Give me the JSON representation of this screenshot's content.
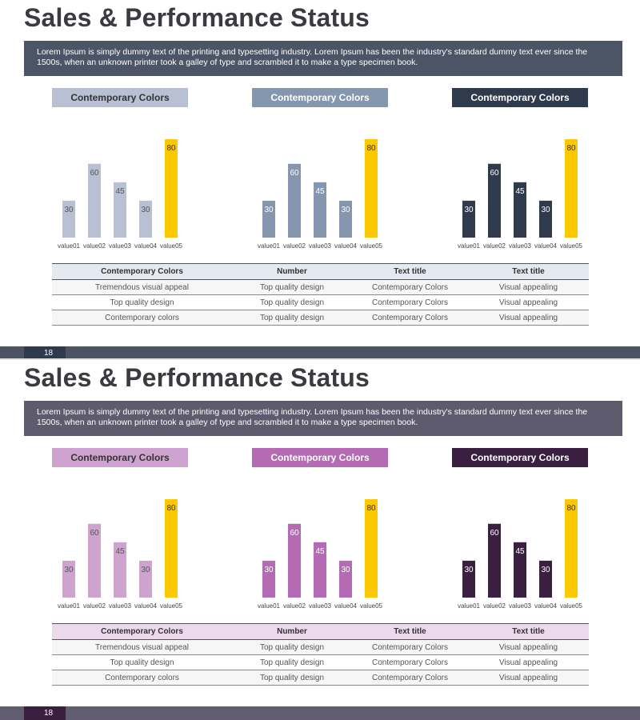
{
  "slides": [
    {
      "title": "Sales & Performance Status",
      "description": "Lorem Ipsum is simply dummy text of the printing and typesetting industry. Lorem Ipsum has been the industry's standard dummy text ever since the 1500s, when an unknown printer took a galley of type and scrambled it to make a type specimen book.",
      "theme": {
        "band": "#4b5566",
        "light": "#b8c0d3",
        "mid": "#8597ae",
        "dark": "#2f3a4d",
        "highlight": "#fdc800",
        "table_header_bg": "#e5e9f1",
        "footer": "#4c5364",
        "footer_num": "#2f3a4d"
      },
      "panel_headers": [
        "Contemporary Colors",
        "Contemporary Colors",
        "Contemporary Colors"
      ],
      "table": {
        "headers": [
          "Contemporary Colors",
          "Number",
          "Text title",
          "Text title"
        ],
        "rows": [
          [
            "Tremendous visual appeal",
            "Top quality design",
            "Contemporary Colors",
            "Visual appealing"
          ],
          [
            "Top quality design",
            "Top quality design",
            "Contemporary Colors",
            "Visual appealing"
          ],
          [
            "Contemporary colors",
            "Top quality design",
            "Contemporary Colors",
            "Visual appealing"
          ]
        ]
      },
      "page_number": "18"
    },
    {
      "title": "Sales & Performance Status",
      "description": "Lorem Ipsum is simply dummy text of the printing and typesetting industry. Lorem Ipsum has been the industry's standard dummy text ever since the 1500s, when an unknown printer took a galley of type and scrambled it to make a type specimen book.",
      "theme": {
        "band": "#5e5b6e",
        "light": "#cfa3cf",
        "mid": "#b46bb4",
        "dark": "#3a1f41",
        "highlight": "#fdc800",
        "table_header_bg": "#ecdaec",
        "footer": "#625c70",
        "footer_num": "#3a1f41"
      },
      "panel_headers": [
        "Contemporary Colors",
        "Contemporary Colors",
        "Contemporary Colors"
      ],
      "table": {
        "headers": [
          "Contemporary Colors",
          "Number",
          "Text title",
          "Text title"
        ],
        "rows": [
          [
            "Tremendous visual appeal",
            "Top quality design",
            "Contemporary Colors",
            "Visual appealing"
          ],
          [
            "Top quality design",
            "Top quality design",
            "Contemporary Colors",
            "Visual appealing"
          ],
          [
            "Contemporary colors",
            "Top quality design",
            "Contemporary Colors",
            "Visual appealing"
          ]
        ]
      },
      "page_number": "18"
    }
  ],
  "chart_data": [
    {
      "type": "bar",
      "title": "Contemporary Colors",
      "categories": [
        "value01",
        "value02",
        "value03",
        "value04",
        "value05"
      ],
      "values": [
        30,
        60,
        45,
        30,
        80
      ],
      "ylim": [
        0,
        80
      ],
      "highlight_category": "value05"
    },
    {
      "type": "bar",
      "title": "Contemporary Colors",
      "categories": [
        "value01",
        "value02",
        "value03",
        "value04",
        "value05"
      ],
      "values": [
        30,
        60,
        45,
        30,
        80
      ],
      "ylim": [
        0,
        80
      ],
      "highlight_category": "value05"
    },
    {
      "type": "bar",
      "title": "Contemporary Colors",
      "categories": [
        "value01",
        "value02",
        "value03",
        "value04",
        "value05"
      ],
      "values": [
        30,
        60,
        45,
        30,
        80
      ],
      "ylim": [
        0,
        80
      ],
      "highlight_category": "value05"
    },
    {
      "type": "bar",
      "title": "Contemporary Colors",
      "categories": [
        "value01",
        "value02",
        "value03",
        "value04",
        "value05"
      ],
      "values": [
        30,
        60,
        45,
        30,
        80
      ],
      "ylim": [
        0,
        80
      ],
      "highlight_category": "value05"
    },
    {
      "type": "bar",
      "title": "Contemporary Colors",
      "categories": [
        "value01",
        "value02",
        "value03",
        "value04",
        "value05"
      ],
      "values": [
        30,
        60,
        45,
        30,
        80
      ],
      "ylim": [
        0,
        80
      ],
      "highlight_category": "value05"
    },
    {
      "type": "bar",
      "title": "Contemporary Colors",
      "categories": [
        "value01",
        "value02",
        "value03",
        "value04",
        "value05"
      ],
      "values": [
        30,
        60,
        45,
        30,
        80
      ],
      "ylim": [
        0,
        80
      ],
      "highlight_category": "value05"
    }
  ]
}
